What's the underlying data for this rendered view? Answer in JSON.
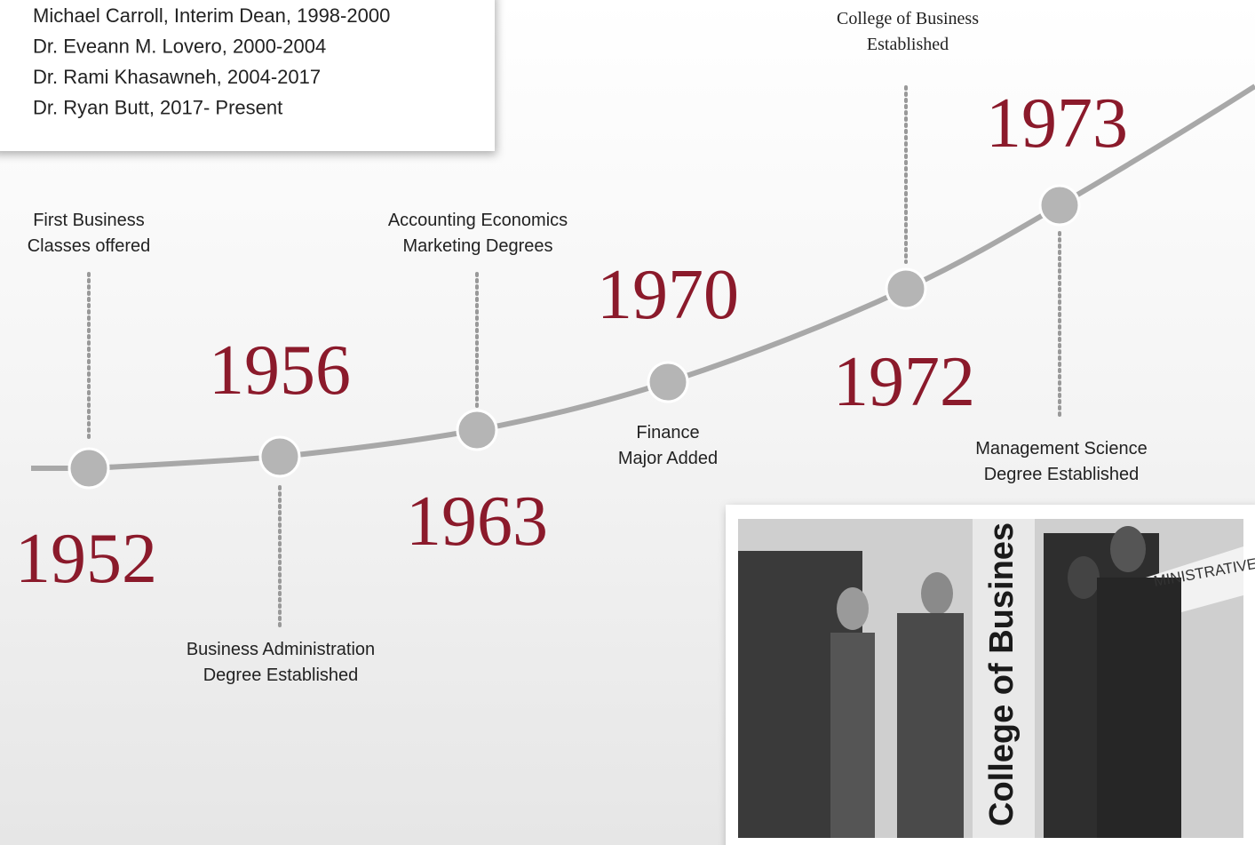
{
  "deans": [
    "Michael Carroll, Interim Dean, 1998-2000",
    "Dr. Eveann M. Lovero, 2000-2004",
    "Dr. Rami Khasawneh, 2004-2017",
    "Dr. Ryan Butt, 2017- Present"
  ],
  "events": [
    {
      "year": "1952",
      "label": [
        "First Business",
        "Classes offered"
      ]
    },
    {
      "year": "1956",
      "label": [
        "Business Administration",
        "Degree Established"
      ]
    },
    {
      "year": "1963",
      "label": [
        "Accounting Economics",
        "Marketing Degrees"
      ]
    },
    {
      "year": "1970",
      "label": [
        "Finance",
        "Major Added"
      ]
    },
    {
      "year": "1972",
      "label": [
        "College of Business",
        "Established"
      ]
    },
    {
      "year": "1973",
      "label": [
        "Management Science",
        "Degree Established"
      ]
    }
  ],
  "photo": {
    "sign_vertical": "College of Busines",
    "sign_wall": "MINISTRATIVE"
  }
}
